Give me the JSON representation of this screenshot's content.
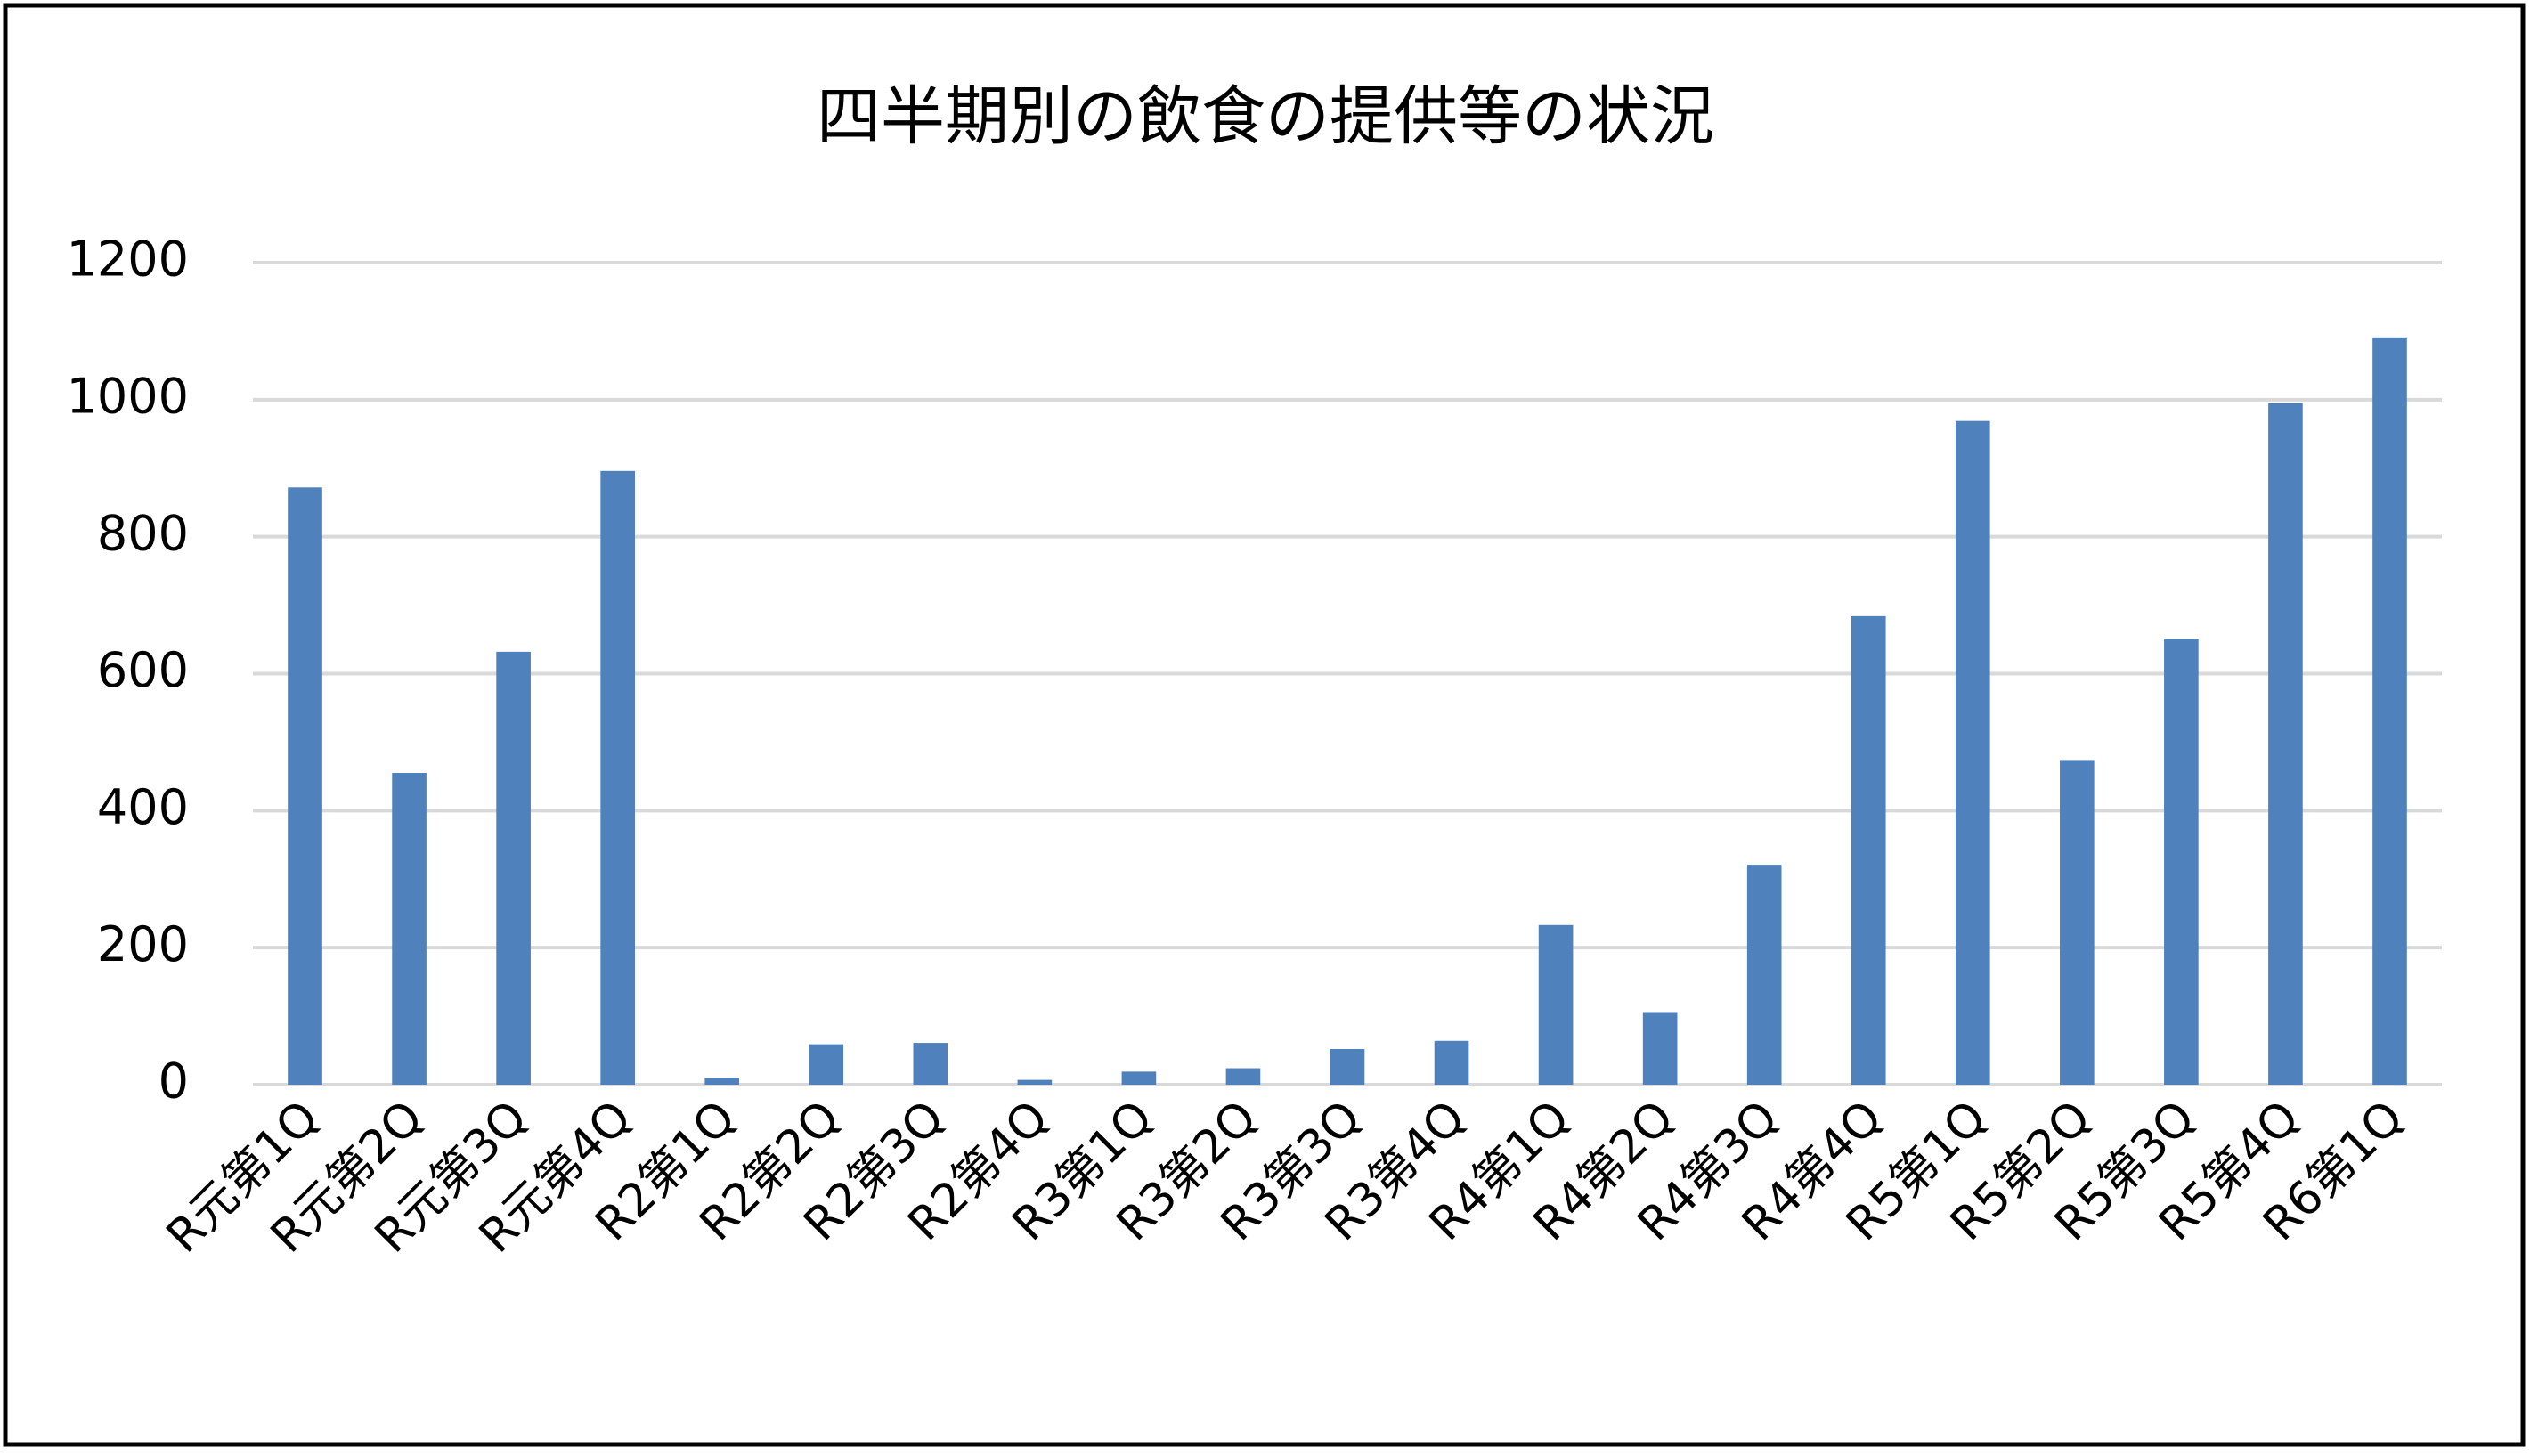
{
  "chart_data": {
    "type": "bar",
    "title": "四半期別の飲食の提供等の状況",
    "categories": [
      "R元第1Q",
      "R元第2Q",
      "R元第3Q",
      "R元第4Q",
      "R2第1Q",
      "R2第2Q",
      "R2第3Q",
      "R2第4Q",
      "R3第1Q",
      "R3第2Q",
      "R3第3Q",
      "R3第4Q",
      "R4第1Q",
      "R4第2Q",
      "R4第3Q",
      "R4第4Q",
      "R5第1Q",
      "R5第2Q",
      "R5第3Q",
      "R5第4Q",
      "R6第1Q"
    ],
    "values": [
      872,
      455,
      632,
      896,
      10,
      59,
      61,
      7,
      19,
      24,
      52,
      64,
      233,
      106,
      321,
      684,
      969,
      474,
      651,
      995,
      1091
    ],
    "color": "#4f81bd",
    "ylim": [
      0,
      1200
    ],
    "yticks": [
      0,
      200,
      400,
      600,
      800,
      1000,
      1200
    ],
    "grid": true
  }
}
